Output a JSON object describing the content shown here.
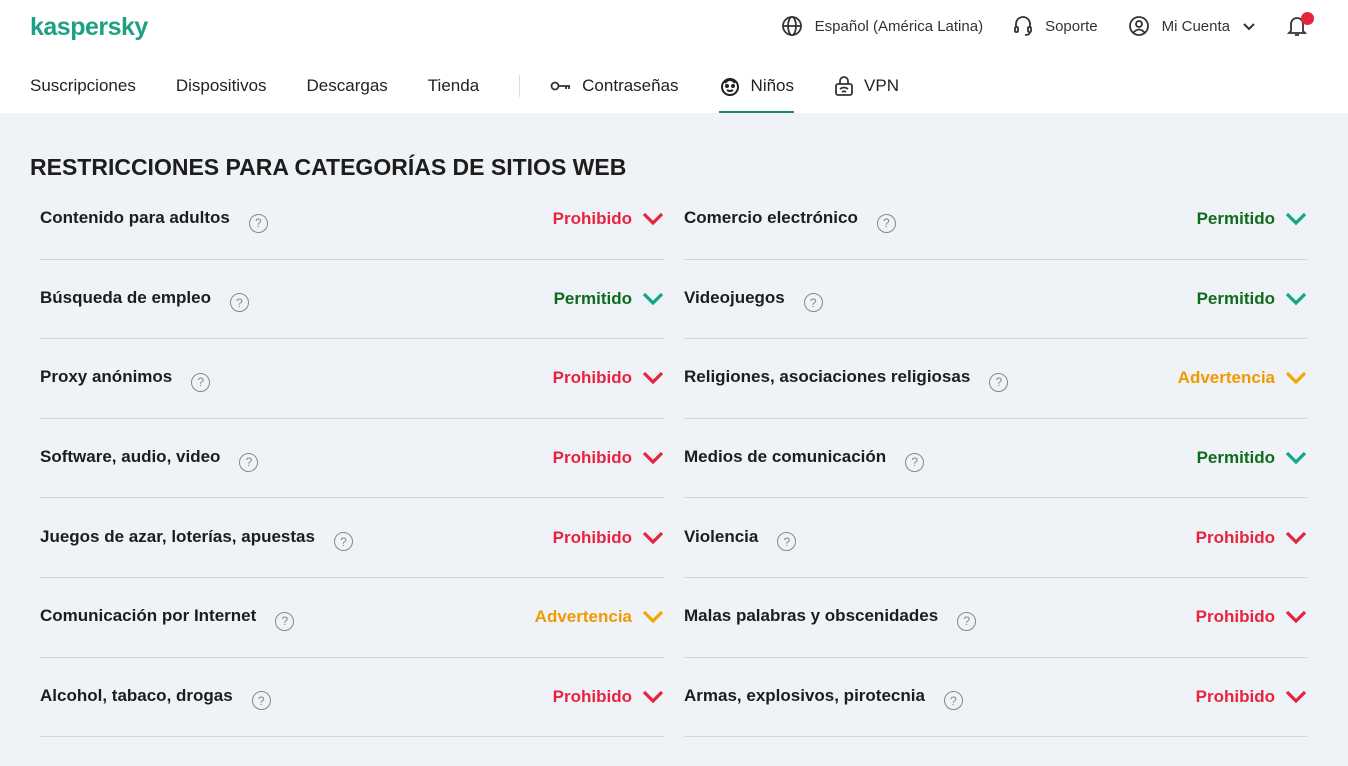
{
  "header": {
    "logo": "kaspersky",
    "language": "Español (América Latina)",
    "support": "Soporte",
    "account": "Mi Cuenta"
  },
  "nav": {
    "items": [
      "Suscripciones",
      "Dispositivos",
      "Descargas",
      "Tienda"
    ],
    "passwords": "Contraseñas",
    "kids": "Niños",
    "vpn": "VPN",
    "active": "Niños"
  },
  "page_title": "RESTRICCIONES PARA CATEGORÍAS DE SITIOS WEB",
  "colors": {
    "Prohibido": {
      "text": "#e8243c",
      "icon": "#e8243c"
    },
    "Permitido": {
      "text": "#0e6b1e",
      "icon": "#0ea58b"
    },
    "Advertencia": {
      "text": "#f09a00",
      "icon": "#f0a800"
    },
    "brand": "#1ea083"
  },
  "categories": [
    {
      "name": "Contenido para adultos",
      "status": "Prohibido"
    },
    {
      "name": "Comercio electrónico",
      "status": "Permitido"
    },
    {
      "name": "Búsqueda de empleo",
      "status": "Permitido"
    },
    {
      "name": "Videojuegos",
      "status": "Permitido"
    },
    {
      "name": "Proxy anónimos",
      "status": "Prohibido"
    },
    {
      "name": "Religiones, asociaciones religiosas",
      "status": "Advertencia"
    },
    {
      "name": "Software, audio, video",
      "status": "Prohibido"
    },
    {
      "name": "Medios de comunicación",
      "status": "Permitido"
    },
    {
      "name": "Juegos de azar, loterías, apuestas",
      "status": "Prohibido"
    },
    {
      "name": "Violencia",
      "status": "Prohibido"
    },
    {
      "name": "Comunicación por Internet",
      "status": "Advertencia"
    },
    {
      "name": "Malas palabras y obscenidades",
      "status": "Prohibido"
    },
    {
      "name": "Alcohol, tabaco, drogas",
      "status": "Prohibido"
    },
    {
      "name": "Armas, explosivos, pirotecnia",
      "status": "Prohibido"
    }
  ]
}
